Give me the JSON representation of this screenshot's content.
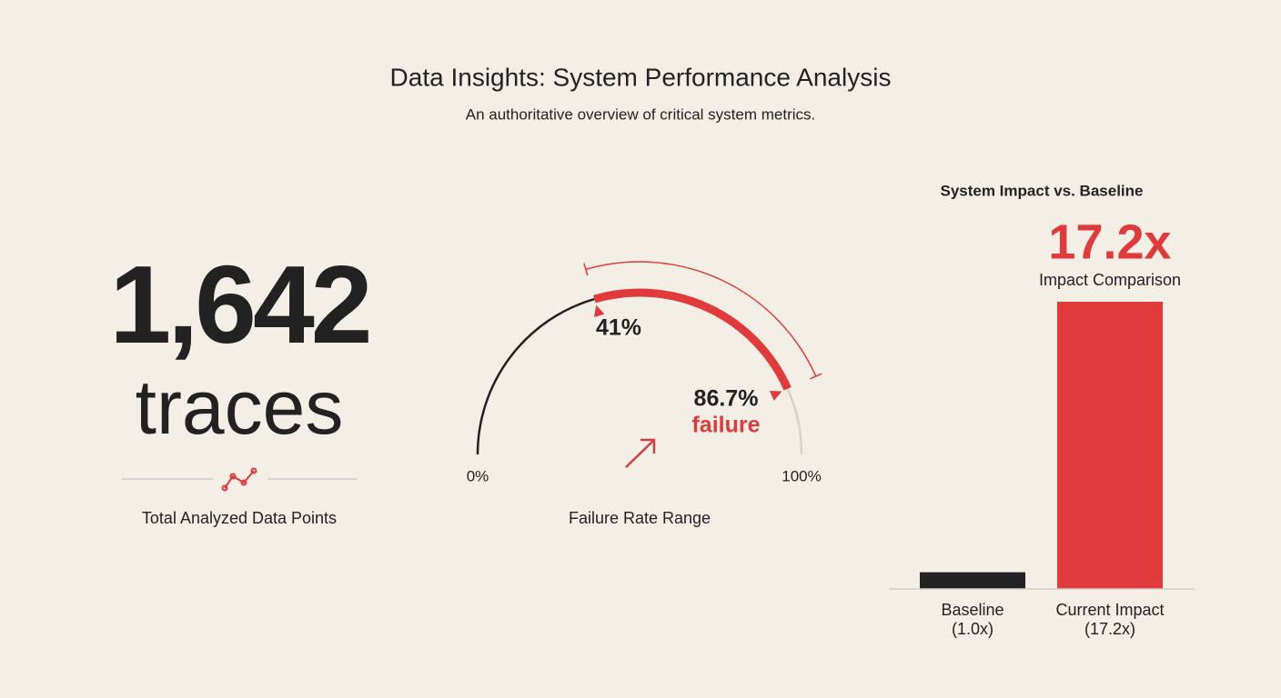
{
  "header": {
    "title": "Data Insights: System Performance Analysis",
    "subtitle": "An authoritative overview of critical system metrics."
  },
  "stat": {
    "total": "1,642",
    "unit": "traces",
    "caption": "Total Analyzed Data Points"
  },
  "chart_data": [
    {
      "type": "gauge",
      "title": "Failure Rate Range",
      "xlim": [
        0,
        100
      ],
      "xticks": [
        {
          "value": 0,
          "label": "0%"
        },
        {
          "value": 100,
          "label": "100%"
        }
      ],
      "values": [
        41,
        86.7
      ],
      "value_labels": [
        "41%",
        "86.7%"
      ],
      "annotation": "failure",
      "color": "#e03a3a"
    },
    {
      "type": "bar",
      "title": "System Impact vs. Baseline",
      "annotation": "17.2x",
      "subtitle": "Impact Comparison",
      "categories": [
        "Baseline",
        "Current Impact"
      ],
      "values": [
        1.0,
        17.2
      ],
      "value_labels": [
        "(1.0x)",
        "(17.2x)"
      ],
      "colors": [
        "#222222",
        "#e03a3a"
      ],
      "ylim": [
        0,
        17.2
      ]
    }
  ]
}
